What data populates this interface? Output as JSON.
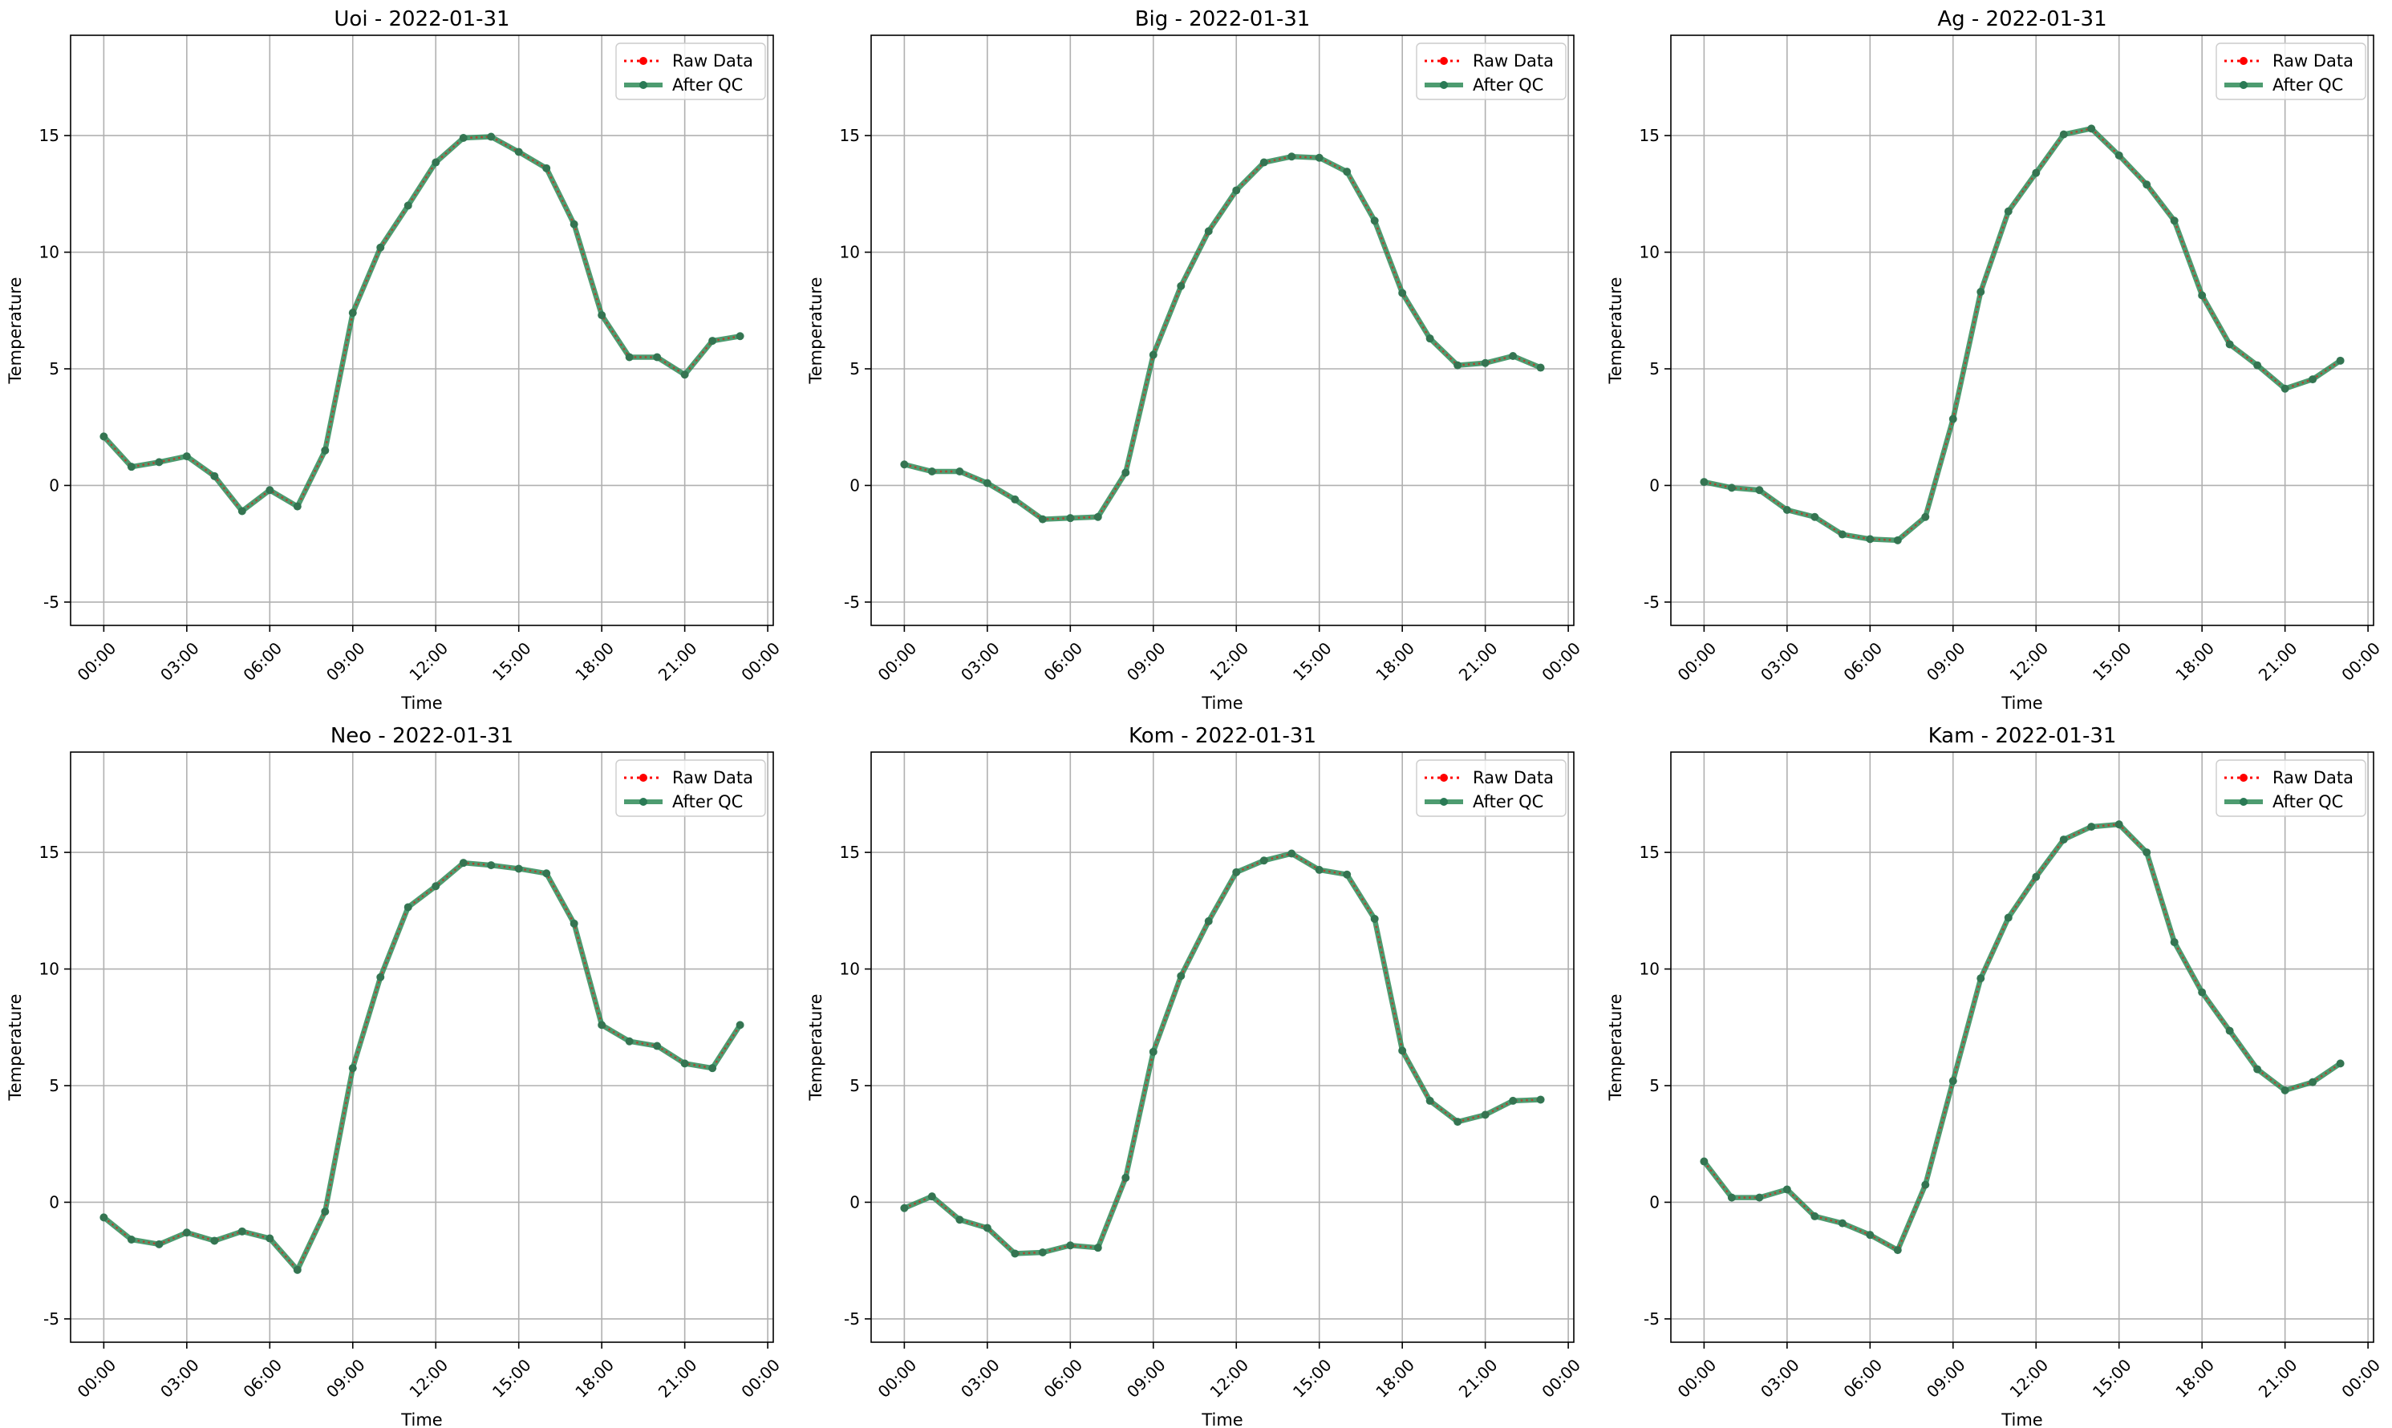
{
  "legend": {
    "raw_label": "Raw Data",
    "qc_label": "After QC"
  },
  "colors": {
    "raw": "#ff0000",
    "qc": "#2e8b57",
    "qc_marker": "#2a7a55",
    "grid": "#b0b0b0"
  },
  "chart_data": [
    {
      "type": "line",
      "title": "Uoi - 2022-01-31",
      "xlabel": "Time",
      "ylabel": "Temperature",
      "xticks": [
        "00:00",
        "03:00",
        "06:00",
        "09:00",
        "12:00",
        "15:00",
        "18:00",
        "21:00",
        "00:00"
      ],
      "yticks": [
        -5,
        0,
        5,
        10,
        15
      ],
      "ylim": [
        -6,
        19.3
      ],
      "xlim_hours": [
        -1.2,
        24.2
      ],
      "grid": true,
      "legend_position": "top-right",
      "x_hours": [
        0,
        1,
        2,
        3,
        4,
        5,
        6,
        7,
        8,
        9,
        10,
        11,
        12,
        13,
        14,
        15,
        16,
        17,
        18,
        19,
        20,
        21,
        22,
        23
      ],
      "series": [
        {
          "name": "Raw Data",
          "values": [
            2.1,
            0.8,
            1.0,
            1.25,
            0.4,
            -1.1,
            -0.2,
            -0.9,
            1.5,
            7.4,
            10.2,
            12.0,
            13.85,
            14.9,
            14.95,
            14.3,
            13.6,
            11.2,
            7.3,
            5.5,
            5.5,
            4.75,
            6.2,
            6.4
          ]
        },
        {
          "name": "After QC",
          "values": [
            2.1,
            0.8,
            1.0,
            1.25,
            0.4,
            -1.1,
            -0.2,
            -0.9,
            1.5,
            7.4,
            10.2,
            12.0,
            13.85,
            14.9,
            14.95,
            14.3,
            13.6,
            11.2,
            7.3,
            5.5,
            5.5,
            4.75,
            6.2,
            6.4
          ]
        }
      ]
    },
    {
      "type": "line",
      "title": "Big - 2022-01-31",
      "xlabel": "Time",
      "ylabel": "Temperature",
      "xticks": [
        "00:00",
        "03:00",
        "06:00",
        "09:00",
        "12:00",
        "15:00",
        "18:00",
        "21:00",
        "00:00"
      ],
      "yticks": [
        -5,
        0,
        5,
        10,
        15
      ],
      "ylim": [
        -6,
        19.3
      ],
      "xlim_hours": [
        -1.2,
        24.2
      ],
      "grid": true,
      "legend_position": "top-right",
      "x_hours": [
        0,
        1,
        2,
        3,
        4,
        5,
        6,
        7,
        8,
        9,
        10,
        11,
        12,
        13,
        14,
        15,
        16,
        17,
        18,
        19,
        20,
        21,
        22,
        23
      ],
      "series": [
        {
          "name": "Raw Data",
          "values": [
            0.9,
            0.6,
            0.6,
            0.1,
            -0.6,
            -1.45,
            -1.4,
            -1.35,
            0.55,
            5.6,
            8.55,
            10.9,
            12.65,
            13.85,
            14.1,
            14.05,
            13.45,
            11.35,
            8.25,
            6.3,
            5.15,
            5.25,
            5.55,
            5.05
          ]
        },
        {
          "name": "After QC",
          "values": [
            0.9,
            0.6,
            0.6,
            0.1,
            -0.6,
            -1.45,
            -1.4,
            -1.35,
            0.55,
            5.6,
            8.55,
            10.9,
            12.65,
            13.85,
            14.1,
            14.05,
            13.45,
            11.35,
            8.25,
            6.3,
            5.15,
            5.25,
            5.55,
            5.05
          ]
        }
      ]
    },
    {
      "type": "line",
      "title": "Ag - 2022-01-31",
      "xlabel": "Time",
      "ylabel": "Temperature",
      "xticks": [
        "00:00",
        "03:00",
        "06:00",
        "09:00",
        "12:00",
        "15:00",
        "18:00",
        "21:00",
        "00:00"
      ],
      "yticks": [
        -5,
        0,
        5,
        10,
        15
      ],
      "ylim": [
        -6,
        19.3
      ],
      "xlim_hours": [
        -1.2,
        24.2
      ],
      "grid": true,
      "legend_position": "top-right",
      "x_hours": [
        0,
        1,
        2,
        3,
        4,
        5,
        6,
        7,
        8,
        9,
        10,
        11,
        12,
        13,
        14,
        15,
        16,
        17,
        18,
        19,
        20,
        21,
        22,
        23
      ],
      "series": [
        {
          "name": "Raw Data",
          "values": [
            0.15,
            -0.1,
            -0.2,
            -1.05,
            -1.35,
            -2.1,
            -2.3,
            -2.35,
            -1.35,
            2.85,
            8.3,
            11.75,
            13.4,
            15.05,
            15.3,
            14.15,
            12.9,
            11.35,
            8.15,
            6.05,
            5.15,
            4.15,
            4.55,
            5.35
          ]
        },
        {
          "name": "After QC",
          "values": [
            0.15,
            -0.1,
            -0.2,
            -1.05,
            -1.35,
            -2.1,
            -2.3,
            -2.35,
            -1.35,
            2.85,
            8.3,
            11.75,
            13.4,
            15.05,
            15.3,
            14.15,
            12.9,
            11.35,
            8.15,
            6.05,
            5.15,
            4.15,
            4.55,
            5.35
          ]
        }
      ]
    },
    {
      "type": "line",
      "title": "Neo - 2022-01-31",
      "xlabel": "Time",
      "ylabel": "Temperature",
      "xticks": [
        "00:00",
        "03:00",
        "06:00",
        "09:00",
        "12:00",
        "15:00",
        "18:00",
        "21:00",
        "00:00"
      ],
      "yticks": [
        -5,
        0,
        5,
        10,
        15
      ],
      "ylim": [
        -6,
        19.3
      ],
      "xlim_hours": [
        -1.2,
        24.2
      ],
      "grid": true,
      "legend_position": "top-right",
      "x_hours": [
        0,
        1,
        2,
        3,
        4,
        5,
        6,
        7,
        8,
        9,
        10,
        11,
        12,
        13,
        14,
        15,
        16,
        17,
        18,
        19,
        20,
        21,
        22,
        23
      ],
      "series": [
        {
          "name": "Raw Data",
          "values": [
            -0.65,
            -1.6,
            -1.8,
            -1.3,
            -1.65,
            -1.25,
            -1.55,
            -2.9,
            -0.4,
            5.75,
            9.65,
            12.65,
            13.55,
            14.55,
            14.45,
            14.3,
            14.1,
            11.95,
            7.6,
            6.9,
            6.7,
            5.95,
            5.75,
            7.6
          ]
        },
        {
          "name": "After QC",
          "values": [
            -0.65,
            -1.6,
            -1.8,
            -1.3,
            -1.65,
            -1.25,
            -1.55,
            -2.9,
            -0.4,
            5.75,
            9.65,
            12.65,
            13.55,
            14.55,
            14.45,
            14.3,
            14.1,
            11.95,
            7.6,
            6.9,
            6.7,
            5.95,
            5.75,
            7.6
          ]
        }
      ]
    },
    {
      "type": "line",
      "title": "Kom - 2022-01-31",
      "xlabel": "Time",
      "ylabel": "Temperature",
      "xticks": [
        "00:00",
        "03:00",
        "06:00",
        "09:00",
        "12:00",
        "15:00",
        "18:00",
        "21:00",
        "00:00"
      ],
      "yticks": [
        -5,
        0,
        5,
        10,
        15
      ],
      "ylim": [
        -6,
        19.3
      ],
      "xlim_hours": [
        -1.2,
        24.2
      ],
      "grid": true,
      "legend_position": "top-right",
      "x_hours": [
        0,
        1,
        2,
        3,
        4,
        5,
        6,
        7,
        8,
        9,
        10,
        11,
        12,
        13,
        14,
        15,
        16,
        17,
        18,
        19,
        20,
        21,
        22,
        23
      ],
      "series": [
        {
          "name": "Raw Data",
          "values": [
            -0.25,
            0.25,
            -0.75,
            -1.1,
            -2.2,
            -2.15,
            -1.85,
            -1.95,
            1.05,
            6.45,
            9.7,
            12.05,
            14.15,
            14.65,
            14.95,
            14.25,
            14.05,
            12.15,
            6.5,
            4.35,
            3.45,
            3.75,
            4.35,
            4.4
          ]
        },
        {
          "name": "After QC",
          "values": [
            -0.25,
            0.25,
            -0.75,
            -1.1,
            -2.2,
            -2.15,
            -1.85,
            -1.95,
            1.05,
            6.45,
            9.7,
            12.05,
            14.15,
            14.65,
            14.95,
            14.25,
            14.05,
            12.15,
            6.5,
            4.35,
            3.45,
            3.75,
            4.35,
            4.4
          ]
        }
      ]
    },
    {
      "type": "line",
      "title": "Kam - 2022-01-31",
      "xlabel": "Time",
      "ylabel": "Temperature",
      "xticks": [
        "00:00",
        "03:00",
        "06:00",
        "09:00",
        "12:00",
        "15:00",
        "18:00",
        "21:00",
        "00:00"
      ],
      "yticks": [
        -5,
        0,
        5,
        10,
        15
      ],
      "ylim": [
        -6,
        19.3
      ],
      "xlim_hours": [
        -1.2,
        24.2
      ],
      "grid": true,
      "legend_position": "top-right",
      "x_hours": [
        0,
        1,
        2,
        3,
        4,
        5,
        6,
        7,
        8,
        9,
        10,
        11,
        12,
        13,
        14,
        15,
        16,
        17,
        18,
        19,
        20,
        21,
        22,
        23
      ],
      "series": [
        {
          "name": "Raw Data",
          "values": [
            1.75,
            0.2,
            0.2,
            0.55,
            -0.6,
            -0.9,
            -1.4,
            -2.05,
            0.75,
            5.2,
            9.6,
            12.2,
            13.95,
            15.55,
            16.1,
            16.2,
            15.0,
            11.15,
            9.0,
            7.35,
            5.7,
            4.8,
            5.15,
            5.95
          ]
        },
        {
          "name": "After QC",
          "values": [
            1.75,
            0.2,
            0.2,
            0.55,
            -0.6,
            -0.9,
            -1.4,
            -2.05,
            0.75,
            5.2,
            9.6,
            12.2,
            13.95,
            15.55,
            16.1,
            16.2,
            15.0,
            11.15,
            9.0,
            7.35,
            5.7,
            4.8,
            5.15,
            5.95
          ]
        }
      ]
    }
  ]
}
